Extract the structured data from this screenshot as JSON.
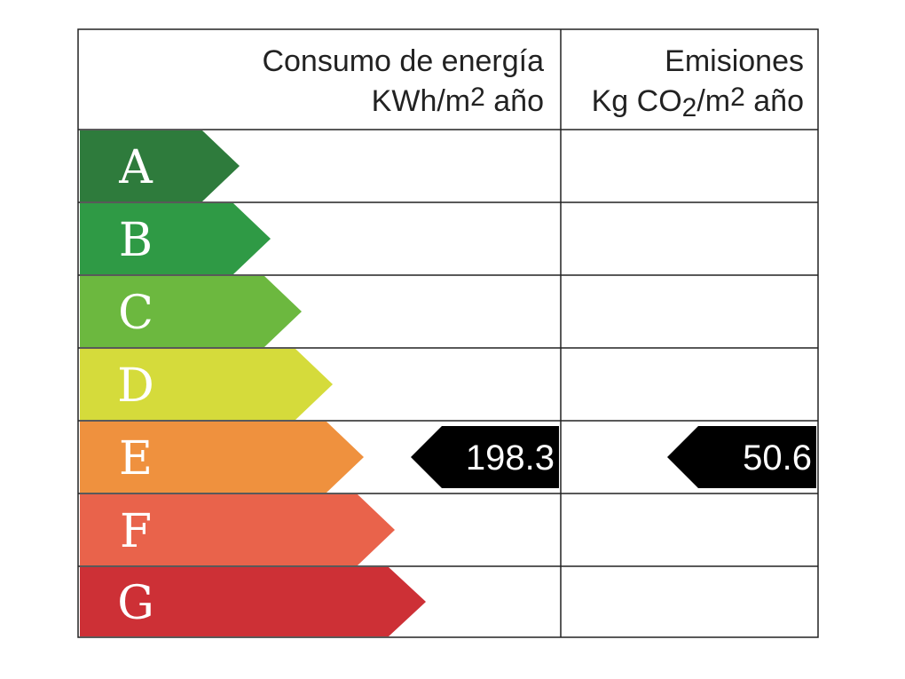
{
  "header": {
    "energy": {
      "title": "Consumo de energía",
      "unit": [
        "KWh/m",
        "2",
        " año"
      ]
    },
    "emissions": {
      "title": "Emisiones",
      "unit": [
        "Kg CO",
        "2",
        "/m",
        "2",
        " año"
      ]
    }
  },
  "rows": [
    {
      "letter": "A",
      "color": "#2e7b3c"
    },
    {
      "letter": "B",
      "color": "#2f9a45"
    },
    {
      "letter": "C",
      "color": "#6cb83f"
    },
    {
      "letter": "D",
      "color": "#d5db3b"
    },
    {
      "letter": "E",
      "color": "#ef913e",
      "energy": 198.3,
      "emissions": 50.6
    },
    {
      "letter": "F",
      "color": "#e9634b"
    },
    {
      "letter": "G",
      "color": "#cd3036"
    }
  ]
}
